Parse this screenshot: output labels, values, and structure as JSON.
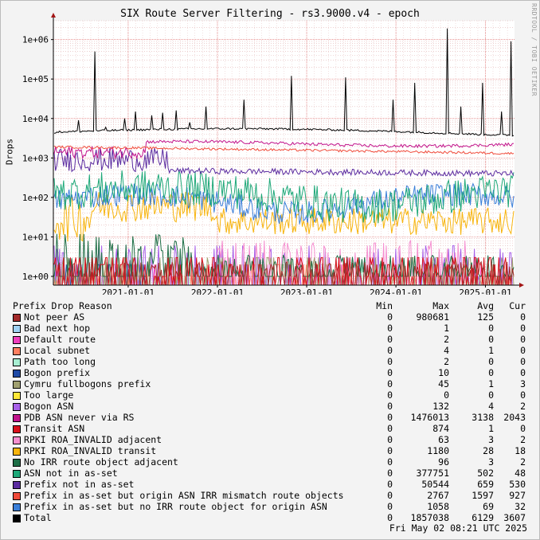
{
  "title": "SIX Route Server Filtering - rs3.9000.v4 - epoch",
  "watermark": "RRDTOOL / TOBI OETIKER",
  "timestamp": "Fri May 02 08:21 UTC 2025",
  "legend_headers": {
    "name": "Prefix Drop Reason",
    "min": "Min",
    "max": "Max",
    "avg": "Avg",
    "cur": "Cur"
  },
  "chart_data": {
    "type": "line",
    "title": "SIX Route Server Filtering - rs3.9000.v4 - epoch",
    "ylabel": "Drops",
    "xlabel": "",
    "yscale": "log",
    "ylim": [
      0.6,
      3000000
    ],
    "xlim": [
      "2020-03-01",
      "2025-04-30"
    ],
    "grid": true,
    "y_ticks": [
      "1e+00",
      "1e+01",
      "1e+02",
      "1e+03",
      "1e+04",
      "1e+05",
      "1e+06"
    ],
    "y_tick_values": [
      1,
      10,
      100,
      1000,
      10000,
      100000,
      1000000
    ],
    "x_ticks": [
      "2021-01-01",
      "2022-01-01",
      "2023-01-01",
      "2024-01-01",
      "2025-01-01"
    ],
    "series": [
      {
        "name": "Not peer AS",
        "color": "#a32a2a",
        "min": "0",
        "max": "980681",
        "avg": "125",
        "cur": "0"
      },
      {
        "name": "Bad next hop",
        "color": "#9fd3f5",
        "min": "0",
        "max": "1",
        "avg": "0",
        "cur": "0"
      },
      {
        "name": "Default route",
        "color": "#ef3fbd",
        "min": "0",
        "max": "2",
        "avg": "0",
        "cur": "0"
      },
      {
        "name": "Local subnet",
        "color": "#ff7f60",
        "min": "0",
        "max": "4",
        "avg": "1",
        "cur": "0"
      },
      {
        "name": "Path too long",
        "color": "#a8efd2",
        "min": "0",
        "max": "2",
        "avg": "0",
        "cur": "0"
      },
      {
        "name": "Bogon prefix",
        "color": "#1f4aa6",
        "min": "0",
        "max": "10",
        "avg": "0",
        "cur": "0"
      },
      {
        "name": "Cymru fullbogons prefix",
        "color": "#a0a070",
        "min": "0",
        "max": "45",
        "avg": "1",
        "cur": "3"
      },
      {
        "name": "Too large",
        "color": "#ffe838",
        "min": "0",
        "max": "0",
        "avg": "0",
        "cur": "0"
      },
      {
        "name": "Bogon ASN",
        "color": "#a760e8",
        "min": "0",
        "max": "132",
        "avg": "4",
        "cur": "2"
      },
      {
        "name": "PDB ASN never via RS",
        "color": "#c2148c",
        "min": "0",
        "max": "1476013",
        "avg": "3138",
        "cur": "2043"
      },
      {
        "name": "Transit ASN",
        "color": "#d8101c",
        "min": "0",
        "max": "874",
        "avg": "1",
        "cur": "0"
      },
      {
        "name": "RPKI ROA_INVALID adjacent",
        "color": "#f58fd0",
        "min": "0",
        "max": "63",
        "avg": "3",
        "cur": "2"
      },
      {
        "name": "RPKI ROA_INVALID transit",
        "color": "#f7b40d",
        "min": "0",
        "max": "1180",
        "avg": "28",
        "cur": "18"
      },
      {
        "name": "No IRR route object adjacent",
        "color": "#1e6e46",
        "min": "0",
        "max": "96",
        "avg": "3",
        "cur": "2"
      },
      {
        "name": "ASN not in as-set",
        "color": "#1ea878",
        "min": "0",
        "max": "377751",
        "avg": "502",
        "cur": "48"
      },
      {
        "name": "Prefix not in as-set",
        "color": "#5b2ba0",
        "min": "0",
        "max": "50544",
        "avg": "659",
        "cur": "530"
      },
      {
        "name": "Prefix in as-set but origin ASN IRR mismatch route objects",
        "color": "#f04a3a",
        "min": "0",
        "max": "2767",
        "avg": "1597",
        "cur": "927"
      },
      {
        "name": "Prefix in as-set but no IRR route object for origin ASN",
        "color": "#3a7fd9",
        "min": "0",
        "max": "1058",
        "avg": "69",
        "cur": "32"
      },
      {
        "name": "Total",
        "color": "#000000",
        "min": "0",
        "max": "1857038",
        "avg": "6129",
        "cur": "3607"
      }
    ]
  }
}
